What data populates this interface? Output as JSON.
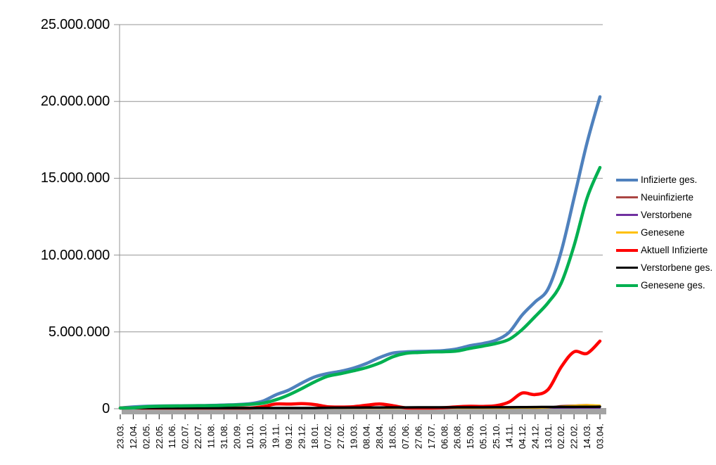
{
  "chart_data": {
    "type": "line",
    "title": "",
    "xlabel": "",
    "ylabel": "",
    "legend_position": "right",
    "grid": true,
    "y_axis": {
      "min": 0,
      "max": 25000000,
      "tick_interval": 5000000,
      "tick_labels": [
        "0",
        "5.000.000",
        "10.000.000",
        "15.000.000",
        "20.000.000",
        "25.000.000"
      ]
    },
    "categories": [
      "23.03.",
      "12.04.",
      "02.05.",
      "22.05.",
      "11.06.",
      "02.07.",
      "22.07.",
      "11.08.",
      "31.08.",
      "20.09.",
      "10.10.",
      "30.10.",
      "19.11.",
      "09.12.",
      "29.12.",
      "18.01.",
      "07.02.",
      "27.02.",
      "19.03.",
      "08.04.",
      "28.04.",
      "18.05.",
      "07.06.",
      "27.06.",
      "17.07.",
      "06.08.",
      "26.08.",
      "15.09.",
      "05.10.",
      "25.10.",
      "14.11.",
      "04.12.",
      "24.12.",
      "13.01.",
      "02.02.",
      "22.02.",
      "14.03.",
      "03.04."
    ],
    "series": [
      {
        "name": "Infizierte ges.",
        "color": "#4F81BD",
        "stroke_width": 4.5,
        "values": [
          30000,
          120000,
          160000,
          178000,
          187000,
          196000,
          204000,
          219000,
          242000,
          272000,
          325000,
          500000,
          900000,
          1220000,
          1670000,
          2070000,
          2290000,
          2440000,
          2650000,
          2950000,
          3330000,
          3620000,
          3700000,
          3730000,
          3750000,
          3790000,
          3900000,
          4110000,
          4250000,
          4470000,
          4980000,
          6100000,
          6950000,
          7800000,
          10200000,
          13700000,
          17300000,
          20300000
        ]
      },
      {
        "name": "Neuinfizierte",
        "color": "#AA4643",
        "stroke_width": 2.5,
        "values": [
          4000,
          6000,
          1500,
          800,
          500,
          400,
          500,
          1000,
          1200,
          2000,
          4000,
          15000,
          23000,
          25000,
          25000,
          15000,
          8000,
          8000,
          12000,
          25000,
          22000,
          8000,
          3000,
          1000,
          1500,
          4000,
          10000,
          10000,
          8000,
          15000,
          40000,
          65000,
          45000,
          80000,
          190000,
          220000,
          250000,
          190000
        ]
      },
      {
        "name": "Verstorbene",
        "color": "#7030A0",
        "stroke_width": 2,
        "values": [
          200,
          300,
          150,
          100,
          50,
          30,
          30,
          40,
          30,
          50,
          100,
          400,
          800,
          1000,
          1000,
          900,
          600,
          400,
          300,
          300,
          300,
          200,
          100,
          100,
          50,
          100,
          100,
          200,
          200,
          200,
          300,
          400,
          400,
          400,
          200,
          200,
          300,
          300
        ]
      },
      {
        "name": "Genesene",
        "color": "#FFC000",
        "stroke_width": 2.5,
        "values": [
          2000,
          5000,
          4000,
          2000,
          1000,
          800,
          800,
          1000,
          1000,
          2000,
          3000,
          10000,
          18000,
          22000,
          25000,
          20000,
          12000,
          9000,
          10000,
          20000,
          24000,
          12000,
          5000,
          2000,
          1500,
          3000,
          8000,
          10000,
          9000,
          12000,
          30000,
          55000,
          50000,
          70000,
          150000,
          200000,
          240000,
          220000
        ]
      },
      {
        "name": "Aktuell Infizierte",
        "color": "#FF0000",
        "stroke_width": 4.5,
        "values": [
          25000,
          58000,
          22000,
          11000,
          8000,
          6000,
          7000,
          12000,
          16000,
          21000,
          28000,
          135000,
          305000,
          300000,
          330000,
          270000,
          130000,
          110000,
          135000,
          230000,
          310000,
          200000,
          60000,
          35000,
          30000,
          70000,
          130000,
          160000,
          150000,
          200000,
          440000,
          1020000,
          920000,
          1250000,
          2700000,
          3700000,
          3600000,
          4400000
        ]
      },
      {
        "name": "Verstorbene ges.",
        "color": "#000000",
        "stroke_width": 3.5,
        "values": [
          200,
          3000,
          7000,
          8300,
          8800,
          9000,
          9100,
          9200,
          9300,
          9400,
          9700,
          10500,
          14000,
          20000,
          32000,
          48000,
          62000,
          70000,
          74000,
          78000,
          82000,
          86000,
          89000,
          90200,
          91200,
          91800,
          92200,
          92900,
          93800,
          95100,
          98000,
          102000,
          110000,
          115000,
          118000,
          121000,
          126000,
          131000
        ]
      },
      {
        "name": "Genesene ges.",
        "color": "#00B050",
        "stroke_width": 4.5,
        "values": [
          5000,
          55000,
          130000,
          160000,
          175000,
          185000,
          192000,
          202000,
          220000,
          246000,
          290000,
          360000,
          580000,
          900000,
          1310000,
          1750000,
          2110000,
          2280000,
          2470000,
          2680000,
          2970000,
          3370000,
          3600000,
          3660000,
          3700000,
          3710000,
          3760000,
          3930000,
          4080000,
          4250000,
          4520000,
          5150000,
          6000000,
          6900000,
          8150000,
          10600000,
          13700000,
          15700000
        ]
      }
    ]
  },
  "colors": {
    "background": "#FFFFFF",
    "gridline": "#949494",
    "axis_line": "#949494",
    "axis_shadow": "#A3A3A3",
    "tick": "#1a1a1a",
    "text": "#000000"
  }
}
